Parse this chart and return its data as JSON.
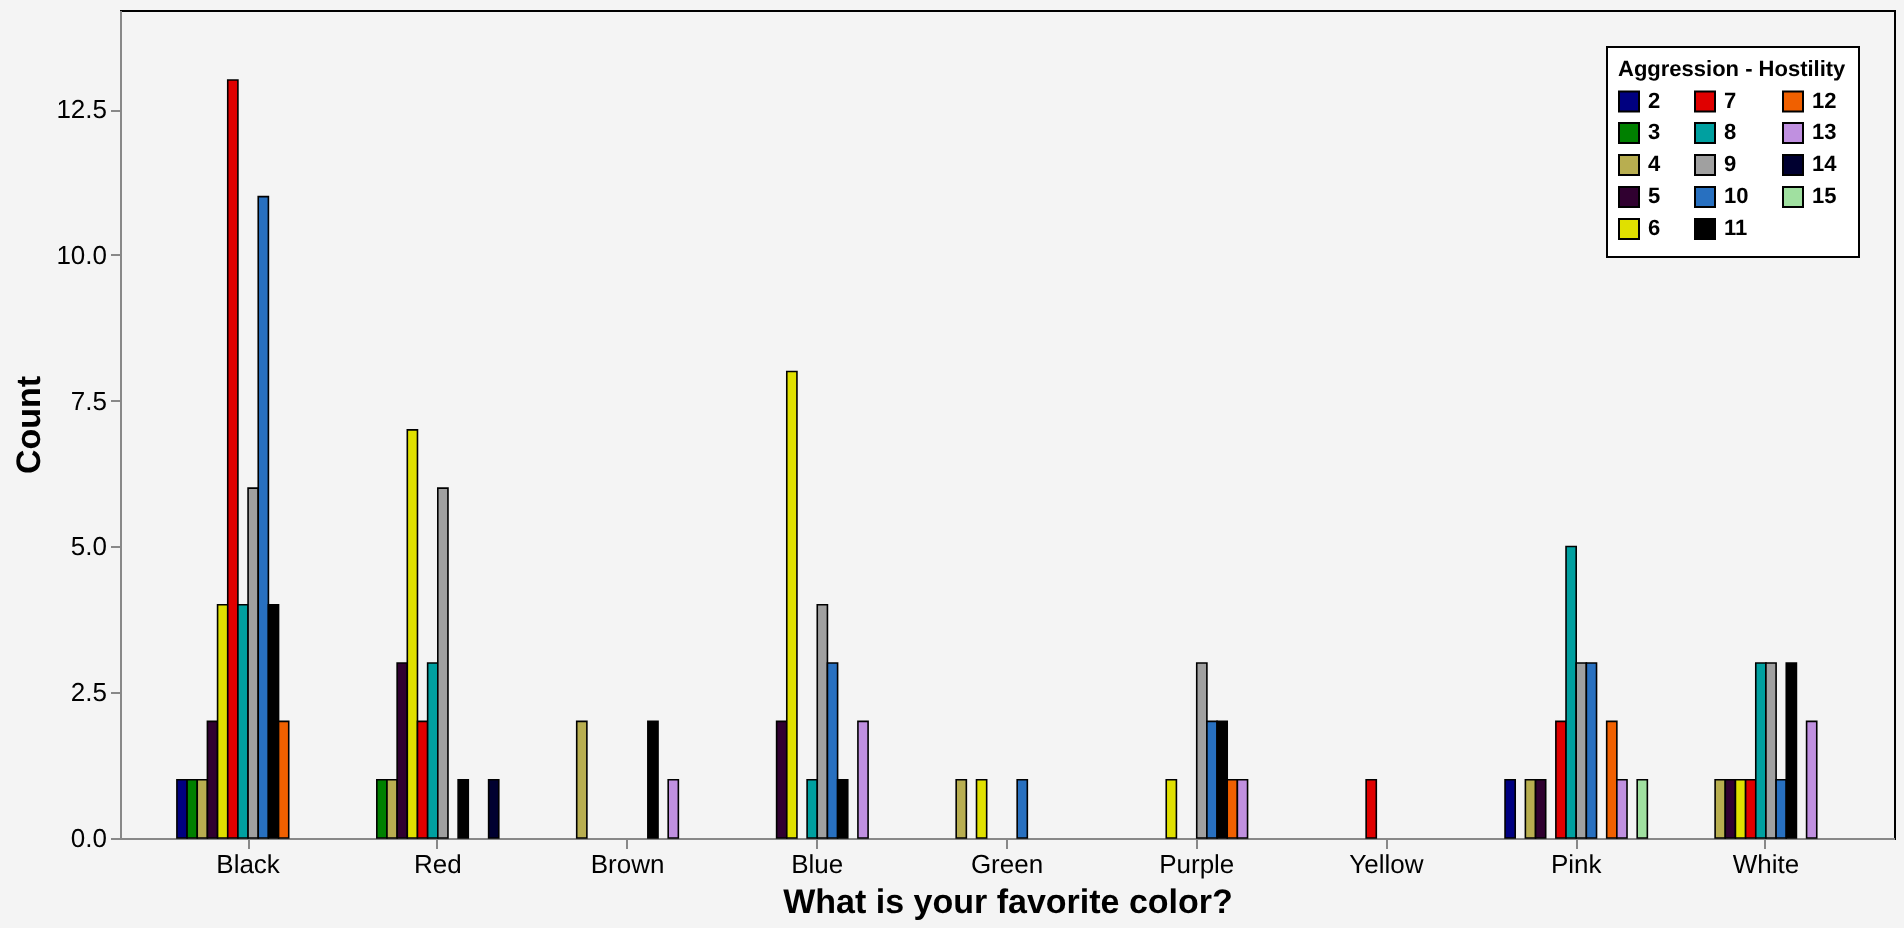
{
  "chart_data": {
    "type": "bar",
    "xlabel": "What is your favorite color?",
    "ylabel": "Count",
    "legend_title": "Aggression - Hostility",
    "legend": "top right",
    "grid": false,
    "categories": [
      "Black",
      "Red",
      "Brown",
      "Blue",
      "Green",
      "Purple",
      "Yellow",
      "Pink",
      "White"
    ],
    "ylim": [
      0,
      14.2
    ],
    "yticks": [
      {
        "value": 0,
        "label": "0.0"
      },
      {
        "value": 2.5,
        "label": "2.5"
      },
      {
        "value": 5,
        "label": "5.0"
      },
      {
        "value": 7.5,
        "label": "7.5"
      },
      {
        "value": 10,
        "label": "10.0"
      },
      {
        "value": 12.5,
        "label": "12.5"
      }
    ],
    "series": [
      {
        "name": "2",
        "color": "#000080",
        "values": [
          1,
          null,
          null,
          null,
          null,
          null,
          null,
          1,
          null
        ]
      },
      {
        "name": "3",
        "color": "#008000",
        "values": [
          1,
          1,
          null,
          null,
          null,
          null,
          null,
          null,
          null
        ]
      },
      {
        "name": "4",
        "color": "#b8ae50",
        "values": [
          1,
          1,
          2,
          null,
          1,
          null,
          null,
          1,
          1
        ]
      },
      {
        "name": "5",
        "color": "#300030",
        "values": [
          2,
          3,
          null,
          2,
          null,
          null,
          null,
          1,
          1
        ]
      },
      {
        "name": "6",
        "color": "#e0e000",
        "values": [
          4,
          7,
          null,
          8,
          1,
          1,
          null,
          null,
          1
        ]
      },
      {
        "name": "7",
        "color": "#e00000",
        "values": [
          13,
          2,
          null,
          null,
          null,
          null,
          1,
          2,
          1
        ]
      },
      {
        "name": "8",
        "color": "#00a0a0",
        "values": [
          4,
          3,
          null,
          1,
          null,
          null,
          null,
          5,
          3
        ]
      },
      {
        "name": "9",
        "color": "#a0a0a0",
        "values": [
          6,
          6,
          null,
          4,
          null,
          3,
          null,
          3,
          3
        ]
      },
      {
        "name": "10",
        "color": "#2870c0",
        "values": [
          11,
          null,
          null,
          3,
          1,
          2,
          null,
          3,
          1
        ]
      },
      {
        "name": "11",
        "color": "#000000",
        "values": [
          4,
          1,
          2,
          1,
          null,
          2,
          null,
          null,
          3
        ]
      },
      {
        "name": "12",
        "color": "#f06000",
        "values": [
          2,
          null,
          null,
          null,
          null,
          1,
          null,
          2,
          null
        ]
      },
      {
        "name": "13",
        "color": "#c090e0",
        "values": [
          null,
          null,
          1,
          2,
          null,
          1,
          null,
          1,
          2
        ]
      },
      {
        "name": "14",
        "color": "#000030",
        "values": [
          null,
          1,
          null,
          null,
          null,
          null,
          null,
          null,
          null
        ]
      },
      {
        "name": "15",
        "color": "#a0e0a0",
        "values": [
          null,
          null,
          null,
          null,
          null,
          null,
          null,
          1,
          null
        ]
      }
    ]
  }
}
